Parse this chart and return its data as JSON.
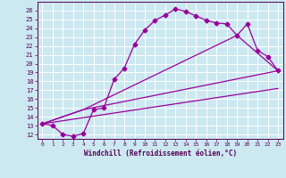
{
  "xlabel": "Windchill (Refroidissement éolien,°C)",
  "bg_color": "#cce8f0",
  "line_color": "#990099",
  "grid_color": "#ffffff",
  "xlim": [
    -0.5,
    23.5
  ],
  "ylim": [
    11.5,
    27.0
  ],
  "xticks": [
    0,
    1,
    2,
    3,
    4,
    5,
    6,
    7,
    8,
    9,
    10,
    11,
    12,
    13,
    14,
    15,
    16,
    17,
    18,
    19,
    20,
    21,
    22,
    23
  ],
  "yticks": [
    12,
    13,
    14,
    15,
    16,
    17,
    18,
    19,
    20,
    21,
    22,
    23,
    24,
    25,
    26
  ],
  "line1_x": [
    0,
    1,
    2,
    3,
    4,
    5,
    6,
    7,
    8,
    9,
    10,
    11,
    12,
    13,
    14,
    15,
    16,
    17,
    18,
    19,
    20,
    21,
    22,
    23
  ],
  "line1_y": [
    13.2,
    13.0,
    12.0,
    11.8,
    12.1,
    14.8,
    15.0,
    18.2,
    19.5,
    22.2,
    23.8,
    24.9,
    25.5,
    26.2,
    25.9,
    25.4,
    24.9,
    24.6,
    24.5,
    23.2,
    24.5,
    21.5,
    20.8,
    19.2
  ],
  "line2_x": [
    0,
    4,
    19,
    23
  ],
  "line2_y": [
    13.2,
    14.8,
    23.2,
    19.2
  ],
  "line3_x": [
    0,
    4,
    23
  ],
  "line3_y": [
    13.2,
    14.8,
    19.2
  ],
  "line4_x": [
    0,
    23
  ],
  "line4_y": [
    13.2,
    17.2
  ],
  "markersize": 2.5,
  "linewidth": 0.9
}
